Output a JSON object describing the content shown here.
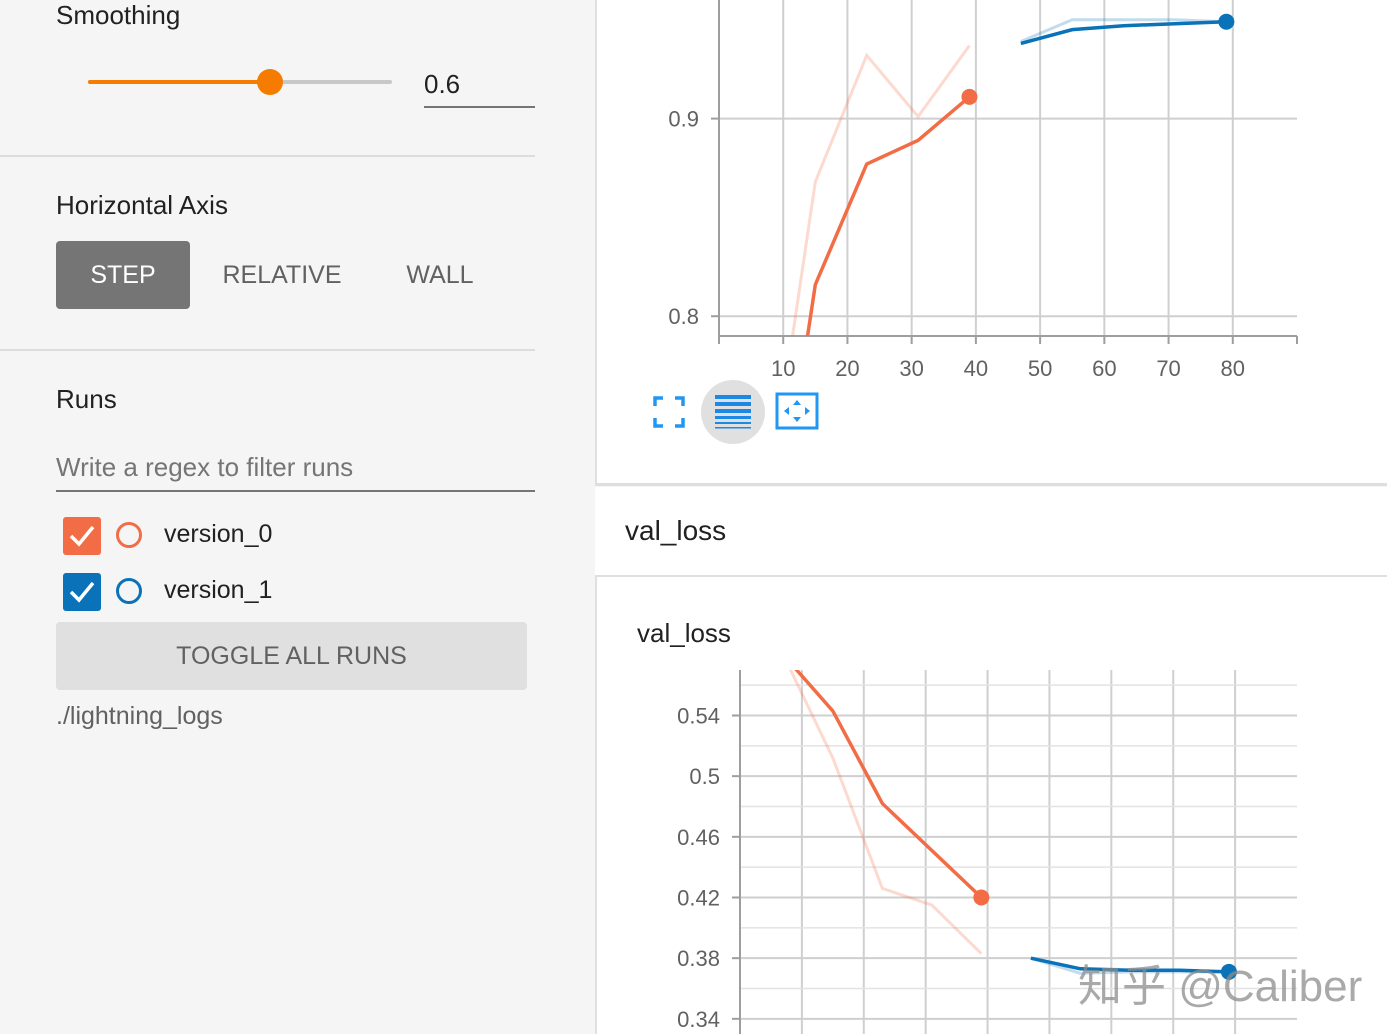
{
  "sidebar": {
    "smoothing": {
      "title": "Smoothing",
      "value": "0.6",
      "fraction": 0.6,
      "accent_color": "#f57c00"
    },
    "horizontal_axis": {
      "title": "Horizontal Axis",
      "options": [
        "STEP",
        "RELATIVE",
        "WALL"
      ],
      "selected": "STEP"
    },
    "runs": {
      "title": "Runs",
      "filter_placeholder": "Write a regex to filter runs",
      "items": [
        {
          "label": "version_0",
          "checked": true,
          "color": "#f26d45"
        },
        {
          "label": "version_1",
          "checked": true,
          "color": "#0a72b8"
        }
      ],
      "toggle_label": "TOGGLE ALL RUNS",
      "logdir": "./lightning_logs"
    }
  },
  "card_icons": [
    "fullscreen-icon",
    "lines-icon",
    "fit-domain-icon"
  ],
  "val_loss_group": {
    "title": "val_loss"
  },
  "watermark": "知乎 @Caliber",
  "chart_data": [
    {
      "type": "line",
      "title": "",
      "xlabel": "",
      "ylabel": "",
      "xlim": [
        0,
        90
      ],
      "ylim": [
        0.79,
        0.96
      ],
      "x_ticks": [
        "10",
        "20",
        "30",
        "40",
        "50",
        "60",
        "70",
        "80"
      ],
      "y_ticks": [
        "0.8",
        "0.9"
      ],
      "grid": true,
      "series": [
        {
          "color": "#f26d45",
          "smoothed": true,
          "x": [
            11,
            15,
            23,
            31,
            39
          ],
          "y": [
            0.73,
            0.816,
            0.877,
            0.889,
            0.911
          ]
        },
        {
          "color": "#f26d45",
          "smoothed": false,
          "x": [
            11,
            15,
            23,
            31,
            39
          ],
          "y": [
            0.78,
            0.868,
            0.932,
            0.901,
            0.937
          ]
        },
        {
          "color": "#0a72b8",
          "smoothed": true,
          "x": [
            47,
            55,
            63,
            71,
            79
          ],
          "y": [
            0.938,
            0.945,
            0.947,
            0.948,
            0.949
          ]
        },
        {
          "color": "#0a72b8",
          "smoothed": false,
          "x": [
            47,
            55,
            63,
            71,
            79
          ],
          "y": [
            0.939,
            0.95,
            0.95,
            0.95,
            0.949
          ]
        }
      ]
    },
    {
      "type": "line",
      "title": "val_loss",
      "xlabel": "",
      "ylabel": "",
      "xlim": [
        0,
        90
      ],
      "ylim": [
        0.33,
        0.57
      ],
      "x_ticks": [],
      "y_ticks": [
        "0.34",
        "0.38",
        "0.42",
        "0.46",
        "0.5",
        "0.54"
      ],
      "grid": true,
      "series": [
        {
          "color": "#f26d45",
          "smoothed": true,
          "x": [
            7,
            15,
            23,
            31,
            39
          ],
          "y": [
            0.58,
            0.543,
            0.482,
            0.451,
            0.42
          ]
        },
        {
          "color": "#f26d45",
          "smoothed": false,
          "x": [
            7,
            15,
            23,
            31,
            39
          ],
          "y": [
            0.58,
            0.512,
            0.426,
            0.415,
            0.383
          ]
        },
        {
          "color": "#0a72b8",
          "smoothed": true,
          "x": [
            47,
            55,
            63,
            71,
            79
          ],
          "y": [
            0.38,
            0.373,
            0.372,
            0.372,
            0.371
          ]
        },
        {
          "color": "#0a72b8",
          "smoothed": false,
          "x": [
            47,
            55,
            63,
            71,
            79
          ],
          "y": [
            0.38,
            0.37,
            0.371,
            0.371,
            0.371
          ]
        }
      ]
    }
  ]
}
